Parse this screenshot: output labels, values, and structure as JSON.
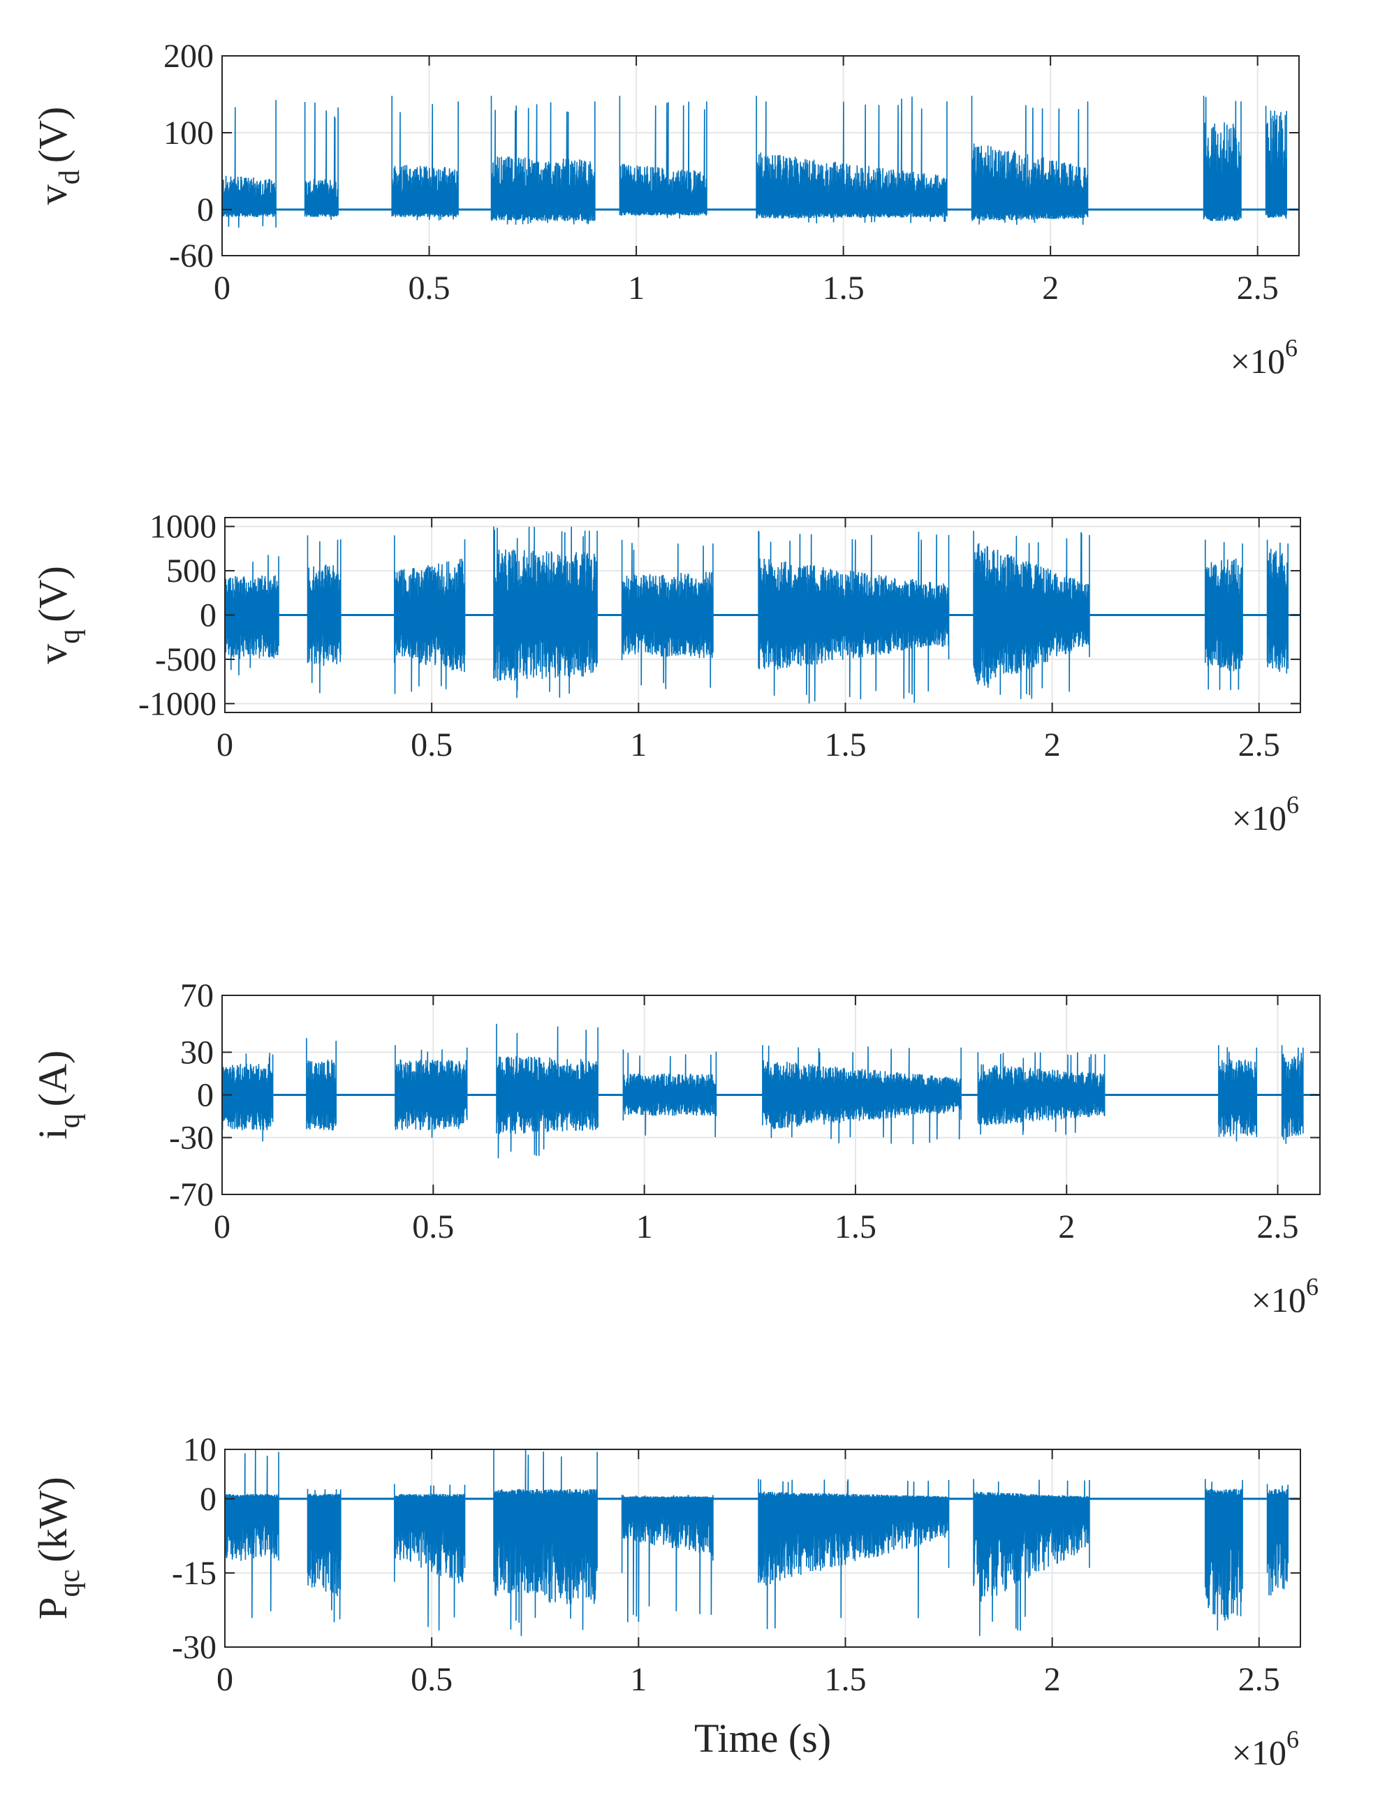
{
  "chart_data": [
    {
      "type": "line",
      "ylabel": "v_d (V)",
      "ylabel_main": "v",
      "ylabel_sub": "d",
      "ylabel_unit": "(V)",
      "xlabel": "",
      "xlim": [
        0,
        2600000
      ],
      "ylim": [
        -60,
        200
      ],
      "xticks": [
        0,
        500000,
        1000000,
        1500000,
        2000000,
        2500000
      ],
      "xtick_labels": [
        "0",
        "0.5",
        "1",
        "1.5",
        "2",
        "2.5"
      ],
      "yticks": [
        -60,
        0,
        100,
        200
      ],
      "ytick_labels": [
        "-60",
        "0",
        "100",
        "200"
      ],
      "x_multiplier_base": "×10",
      "x_multiplier_exp": "6",
      "grid": true,
      "baseline": 0,
      "series": [
        {
          "color": "#0072bd",
          "segments": [
            {
              "x": [
                0,
                130000
              ],
              "env_hi": [
                45,
                40
              ],
              "env_lo": [
                -10,
                -10
              ],
              "spike_hi": 150,
              "spike_lo": -25
            },
            {
              "x": [
                200000,
                280000
              ],
              "env_hi": [
                40,
                40
              ],
              "env_lo": [
                -10,
                -10
              ],
              "spike_hi": 140,
              "spike_lo": -15
            },
            {
              "x": [
                410000,
                570000
              ],
              "env_hi": [
                60,
                55
              ],
              "env_lo": [
                -10,
                -10
              ],
              "spike_hi": 148,
              "spike_lo": -15
            },
            {
              "x": [
                650000,
                900000
              ],
              "env_hi": [
                70,
                65
              ],
              "env_lo": [
                -15,
                -15
              ],
              "spike_hi": 148,
              "spike_lo": -20
            },
            {
              "x": [
                960000,
                1170000
              ],
              "env_hi": [
                60,
                50
              ],
              "env_lo": [
                -8,
                -8
              ],
              "spike_hi": 148,
              "spike_lo": -12
            },
            {
              "x": [
                1290000,
                1750000
              ],
              "env_hi": [
                75,
                45
              ],
              "env_lo": [
                -12,
                -10
              ],
              "spike_hi": 148,
              "spike_lo": -18
            },
            {
              "x": [
                1810000,
                2090000
              ],
              "env_hi": [
                90,
                55
              ],
              "env_lo": [
                -15,
                -12
              ],
              "spike_hi": 148,
              "spike_lo": -20
            },
            {
              "x": [
                2370000,
                2460000
              ],
              "env_hi": [
                120,
                110
              ],
              "env_lo": [
                -15,
                -15
              ],
              "spike_hi": 148,
              "spike_lo": -15
            },
            {
              "x": [
                2520000,
                2570000
              ],
              "env_hi": [
                130,
                130
              ],
              "env_lo": [
                -12,
                -12
              ],
              "spike_hi": 135,
              "spike_lo": -12
            }
          ]
        }
      ]
    },
    {
      "type": "line",
      "ylabel": "v_q (V)",
      "ylabel_main": "v",
      "ylabel_sub": "q",
      "ylabel_unit": "(V)",
      "xlabel": "",
      "xlim": [
        0,
        2600000
      ],
      "ylim": [
        -1100,
        1100
      ],
      "xticks": [
        0,
        500000,
        1000000,
        1500000,
        2000000,
        2500000
      ],
      "xtick_labels": [
        "0",
        "0.5",
        "1",
        "1.5",
        "2",
        "2.5"
      ],
      "yticks": [
        -1000,
        -500,
        0,
        500,
        1000
      ],
      "ytick_labels": [
        "-1000",
        "-500",
        "0",
        "500",
        "1000"
      ],
      "x_multiplier_base": "×10",
      "x_multiplier_exp": "6",
      "grid": true,
      "baseline": 0,
      "series": [
        {
          "color": "#0072bd",
          "segments": [
            {
              "x": [
                0,
                130000
              ],
              "env_hi": [
                450,
                450
              ],
              "env_lo": [
                -500,
                -500
              ],
              "spike_hi": 700,
              "spike_lo": -700
            },
            {
              "x": [
                200000,
                280000
              ],
              "env_hi": [
                550,
                600
              ],
              "env_lo": [
                -550,
                -600
              ],
              "spike_hi": 900,
              "spike_lo": -900
            },
            {
              "x": [
                410000,
                580000
              ],
              "env_hi": [
                500,
                650
              ],
              "env_lo": [
                -500,
                -650
              ],
              "spike_hi": 900,
              "spike_lo": -900
            },
            {
              "x": [
                650000,
                900000
              ],
              "env_hi": [
                750,
                700
              ],
              "env_lo": [
                -750,
                -700
              ],
              "spike_hi": 1000,
              "spike_lo": -1000
            },
            {
              "x": [
                960000,
                1180000
              ],
              "env_hi": [
                450,
                500
              ],
              "env_lo": [
                -450,
                -500
              ],
              "spike_hi": 850,
              "spike_lo": -850
            },
            {
              "x": [
                1290000,
                1750000
              ],
              "env_hi": [
                650,
                350
              ],
              "env_lo": [
                -650,
                -350
              ],
              "spike_hi": 950,
              "spike_lo": -1000
            },
            {
              "x": [
                1810000,
                2090000
              ],
              "env_hi": [
                850,
                350
              ],
              "env_lo": [
                -850,
                -350
              ],
              "spike_hi": 950,
              "spike_lo": -950
            },
            {
              "x": [
                2370000,
                2460000
              ],
              "env_hi": [
                600,
                650
              ],
              "env_lo": [
                -600,
                -650
              ],
              "spike_hi": 850,
              "spike_lo": -900
            },
            {
              "x": [
                2520000,
                2570000
              ],
              "env_hi": [
                700,
                800
              ],
              "env_lo": [
                -600,
                -700
              ],
              "spike_hi": 850,
              "spike_lo": -700
            }
          ]
        }
      ]
    },
    {
      "type": "line",
      "ylabel": "i_q (A)",
      "ylabel_main": "i",
      "ylabel_sub": "q",
      "ylabel_unit": "(A)",
      "xlabel": "",
      "xlim": [
        0,
        2600000
      ],
      "ylim": [
        -70,
        70
      ],
      "xticks": [
        0,
        500000,
        1000000,
        1500000,
        2000000,
        2500000
      ],
      "xtick_labels": [
        "0",
        "0.5",
        "1",
        "1.5",
        "2",
        "2.5"
      ],
      "yticks": [
        -70,
        -30,
        0,
        30,
        70
      ],
      "ytick_labels": [
        "-70",
        "-30",
        "0",
        "30",
        "70"
      ],
      "x_multiplier_base": "×10",
      "x_multiplier_exp": "6",
      "grid": true,
      "baseline": 0,
      "series": [
        {
          "color": "#0072bd",
          "segments": [
            {
              "x": [
                0,
                120000
              ],
              "env_hi": [
                22,
                22
              ],
              "env_lo": [
                -25,
                -25
              ],
              "spike_hi": 30,
              "spike_lo": -38
            },
            {
              "x": [
                200000,
                270000
              ],
              "env_hi": [
                25,
                25
              ],
              "env_lo": [
                -25,
                -25
              ],
              "spike_hi": 40,
              "spike_lo": -40
            },
            {
              "x": [
                410000,
                580000
              ],
              "env_hi": [
                25,
                25
              ],
              "env_lo": [
                -25,
                -25
              ],
              "spike_hi": 35,
              "spike_lo": -35
            },
            {
              "x": [
                650000,
                890000
              ],
              "env_hi": [
                28,
                25
              ],
              "env_lo": [
                -28,
                -25
              ],
              "spike_hi": 50,
              "spike_lo": -45
            },
            {
              "x": [
                950000,
                1170000
              ],
              "env_hi": [
                15,
                15
              ],
              "env_lo": [
                -15,
                -15
              ],
              "spike_hi": 32,
              "spike_lo": -30
            },
            {
              "x": [
                1280000,
                1750000
              ],
              "env_hi": [
                25,
                12
              ],
              "env_lo": [
                -25,
                -12
              ],
              "spike_hi": 35,
              "spike_lo": -35
            },
            {
              "x": [
                1790000,
                2090000
              ],
              "env_hi": [
                22,
                15
              ],
              "env_lo": [
                -22,
                -15
              ],
              "spike_hi": 30,
              "spike_lo": -30
            },
            {
              "x": [
                2360000,
                2450000
              ],
              "env_hi": [
                25,
                25
              ],
              "env_lo": [
                -30,
                -30
              ],
              "spike_hi": 35,
              "spike_lo": -35
            },
            {
              "x": [
                2510000,
                2560000
              ],
              "env_hi": [
                30,
                30
              ],
              "env_lo": [
                -30,
                -30
              ],
              "spike_hi": 35,
              "spike_lo": -35
            }
          ]
        }
      ]
    },
    {
      "type": "line",
      "ylabel": "P_qc (kW)",
      "ylabel_main": "P",
      "ylabel_sub": "qc",
      "ylabel_unit": "(kW)",
      "xlabel": "Time (s)",
      "xlim": [
        0,
        2600000
      ],
      "ylim": [
        -30,
        10
      ],
      "xticks": [
        0,
        500000,
        1000000,
        1500000,
        2000000,
        2500000
      ],
      "xtick_labels": [
        "0",
        "0.5",
        "1",
        "1.5",
        "2",
        "2.5"
      ],
      "yticks": [
        -30,
        -15,
        0,
        10
      ],
      "ytick_labels": [
        "-30",
        "-15",
        "0",
        "10"
      ],
      "x_multiplier_base": "×10",
      "x_multiplier_exp": "6",
      "grid": true,
      "baseline": 0,
      "series": [
        {
          "color": "#0072bd",
          "segments": [
            {
              "x": [
                0,
                130000
              ],
              "env_hi": [
                1,
                1
              ],
              "env_lo": [
                -13,
                -12
              ],
              "spike_hi": 10,
              "spike_lo": -25
            },
            {
              "x": [
                200000,
                280000
              ],
              "env_hi": [
                1,
                1
              ],
              "env_lo": [
                -18,
                -20
              ],
              "spike_hi": 2,
              "spike_lo": -25
            },
            {
              "x": [
                410000,
                580000
              ],
              "env_hi": [
                1,
                1
              ],
              "env_lo": [
                -12,
                -18
              ],
              "spike_hi": 3,
              "spike_lo": -28
            },
            {
              "x": [
                650000,
                900000
              ],
              "env_hi": [
                2,
                2
              ],
              "env_lo": [
                -20,
                -22
              ],
              "spike_hi": 10,
              "spike_lo": -28
            },
            {
              "x": [
                960000,
                1180000
              ],
              "env_hi": [
                0.5,
                0.5
              ],
              "env_lo": [
                -8,
                -12
              ],
              "spike_hi": 0.8,
              "spike_lo": -25
            },
            {
              "x": [
                1290000,
                1750000
              ],
              "env_hi": [
                1.5,
                0.5
              ],
              "env_lo": [
                -18,
                -8
              ],
              "spike_hi": 4,
              "spike_lo": -28
            },
            {
              "x": [
                1810000,
                2090000
              ],
              "env_hi": [
                1.5,
                0.5
              ],
              "env_lo": [
                -22,
                -10
              ],
              "spike_hi": 4,
              "spike_lo": -28
            },
            {
              "x": [
                2370000,
                2460000
              ],
              "env_hi": [
                2,
                2
              ],
              "env_lo": [
                -25,
                -25
              ],
              "spike_hi": 4,
              "spike_lo": -28
            },
            {
              "x": [
                2520000,
                2570000
              ],
              "env_hi": [
                2,
                2
              ],
              "env_lo": [
                -20,
                -20
              ],
              "spike_hi": 3,
              "spike_lo": -25
            }
          ]
        }
      ]
    }
  ]
}
